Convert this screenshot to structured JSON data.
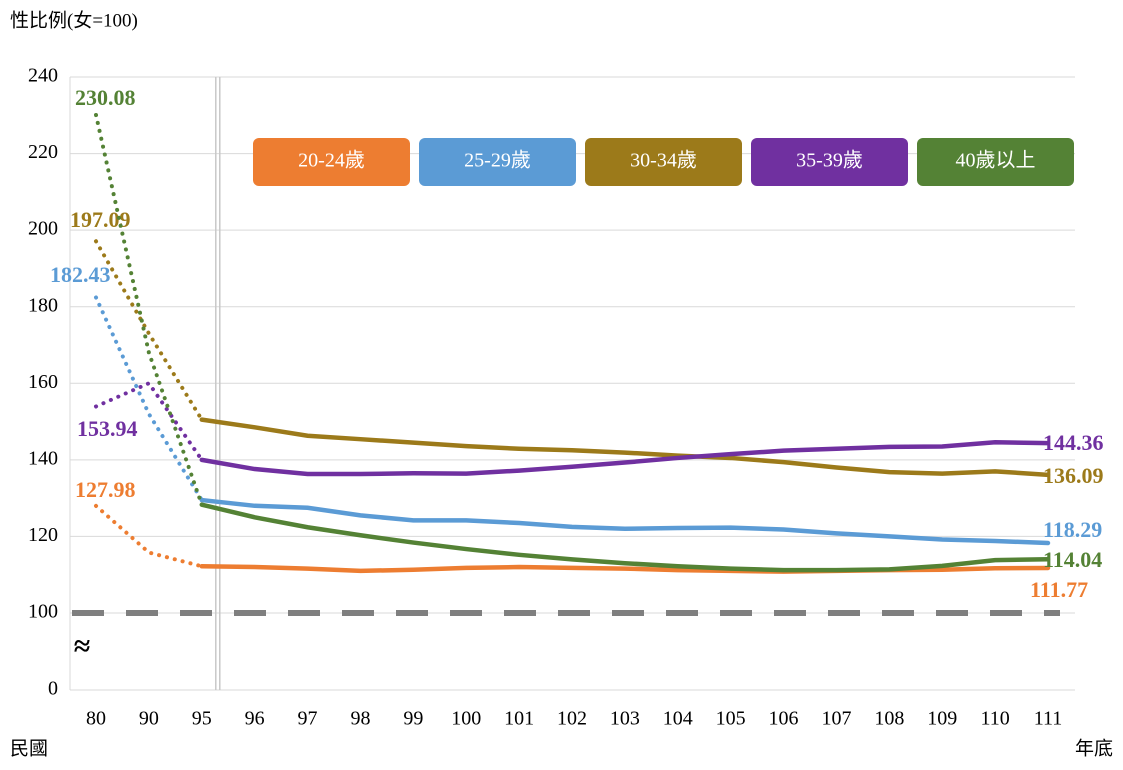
{
  "chart_data": {
    "type": "line",
    "title": "性比例(女=100)",
    "x_label_left": "民國",
    "x_label_right": "年底",
    "categories": [
      "80",
      "90",
      "95",
      "96",
      "97",
      "98",
      "99",
      "100",
      "101",
      "102",
      "103",
      "104",
      "105",
      "106",
      "107",
      "108",
      "109",
      "110",
      "111"
    ],
    "dotted_until": "95",
    "ylim": [
      0,
      240
    ],
    "yticks": [
      0,
      100,
      120,
      140,
      160,
      180,
      200,
      220,
      240
    ],
    "axis_break": {
      "from": 0,
      "to": 100,
      "symbol": "≈"
    },
    "reference_line": 100,
    "grid": true,
    "series": [
      {
        "name": "20-24歲",
        "color": "#ed7d31",
        "values": [
          127.98,
          115.8,
          112.2,
          112,
          111.6,
          111,
          111.3,
          111.8,
          112,
          111.8,
          111.6,
          111.2,
          111,
          110.8,
          111,
          111.2,
          111.3,
          111.7,
          111.77
        ]
      },
      {
        "name": "25-29歲",
        "color": "#5b9bd5",
        "values": [
          182.43,
          152,
          129.5,
          128,
          127.5,
          125.5,
          124.2,
          124.2,
          123.5,
          122.5,
          122,
          122.2,
          122.3,
          121.8,
          120.8,
          120,
          119.2,
          118.8,
          118.29
        ]
      },
      {
        "name": "30-34歲",
        "color": "#9c7a1a",
        "values": [
          197.09,
          173,
          150.5,
          148.5,
          146.3,
          145.4,
          144.5,
          143.6,
          142.9,
          142.5,
          141.9,
          141.1,
          140.5,
          139.4,
          138,
          136.8,
          136.4,
          137,
          136.09
        ]
      },
      {
        "name": "35-39歲",
        "color": "#7030a0",
        "values": [
          153.94,
          160,
          140,
          137.6,
          136.3,
          136.3,
          136.5,
          136.4,
          137.2,
          138.2,
          139.3,
          140.5,
          141.5,
          142.4,
          142.9,
          143.4,
          143.5,
          144.6,
          144.36
        ]
      },
      {
        "name": "40歲以上",
        "color": "#548235",
        "values": [
          230.08,
          168,
          128.3,
          125,
          122.4,
          120.3,
          118.4,
          116.7,
          115.2,
          114,
          113,
          112.2,
          111.6,
          111.2,
          111.2,
          111.4,
          112.3,
          113.8,
          114.04
        ]
      }
    ]
  }
}
